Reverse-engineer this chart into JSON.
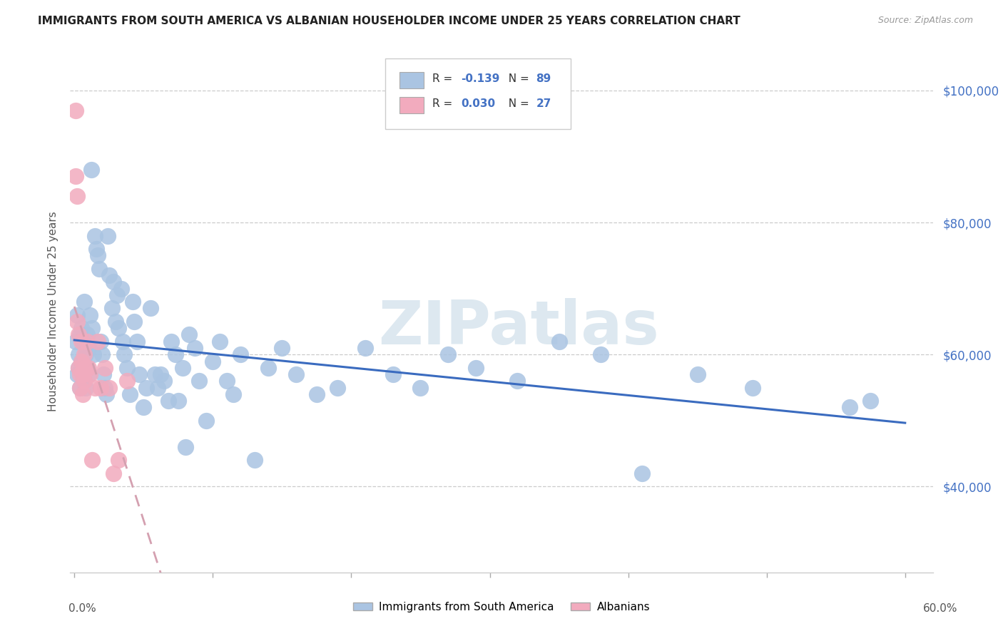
{
  "title": "IMMIGRANTS FROM SOUTH AMERICA VS ALBANIAN HOUSEHOLDER INCOME UNDER 25 YEARS CORRELATION CHART",
  "source": "Source: ZipAtlas.com",
  "ylabel": "Householder Income Under 25 years",
  "yticks": [
    40000,
    60000,
    80000,
    100000
  ],
  "ytick_labels": [
    "$40,000",
    "$60,000",
    "$80,000",
    "$100,000"
  ],
  "xlim": [
    -0.003,
    0.62
  ],
  "ylim": [
    27000,
    106000
  ],
  "blue_R": "-0.139",
  "blue_N": "89",
  "pink_R": "0.030",
  "pink_N": "27",
  "blue_color": "#aac4e2",
  "pink_color": "#f2abbe",
  "blue_line_color": "#3a6bbf",
  "pink_line_color": "#d4a0b0",
  "watermark": "ZIPatlas",
  "legend_label_blue": "Immigrants from South America",
  "legend_label_pink": "Albanians",
  "blue_scatter_x": [
    0.001,
    0.002,
    0.002,
    0.003,
    0.003,
    0.004,
    0.004,
    0.005,
    0.005,
    0.006,
    0.006,
    0.007,
    0.007,
    0.008,
    0.008,
    0.009,
    0.009,
    0.01,
    0.01,
    0.011,
    0.012,
    0.013,
    0.014,
    0.015,
    0.016,
    0.017,
    0.018,
    0.019,
    0.02,
    0.021,
    0.022,
    0.023,
    0.024,
    0.025,
    0.027,
    0.028,
    0.03,
    0.031,
    0.032,
    0.034,
    0.035,
    0.036,
    0.038,
    0.04,
    0.042,
    0.043,
    0.045,
    0.047,
    0.05,
    0.052,
    0.055,
    0.058,
    0.06,
    0.062,
    0.065,
    0.068,
    0.07,
    0.073,
    0.075,
    0.078,
    0.08,
    0.083,
    0.087,
    0.09,
    0.095,
    0.1,
    0.105,
    0.11,
    0.115,
    0.12,
    0.13,
    0.14,
    0.15,
    0.16,
    0.175,
    0.19,
    0.21,
    0.23,
    0.25,
    0.27,
    0.29,
    0.32,
    0.35,
    0.38,
    0.41,
    0.45,
    0.49,
    0.56,
    0.575
  ],
  "blue_scatter_y": [
    62000,
    57000,
    66000,
    60000,
    58000,
    63000,
    55000,
    59000,
    64000,
    57000,
    62000,
    56000,
    68000,
    60000,
    55000,
    63000,
    58000,
    61000,
    57000,
    66000,
    88000,
    64000,
    60000,
    78000,
    76000,
    75000,
    73000,
    62000,
    60000,
    57000,
    55000,
    54000,
    78000,
    72000,
    67000,
    71000,
    65000,
    69000,
    64000,
    70000,
    62000,
    60000,
    58000,
    54000,
    68000,
    65000,
    62000,
    57000,
    52000,
    55000,
    67000,
    57000,
    55000,
    57000,
    56000,
    53000,
    62000,
    60000,
    53000,
    58000,
    46000,
    63000,
    61000,
    56000,
    50000,
    59000,
    62000,
    56000,
    54000,
    60000,
    44000,
    58000,
    61000,
    57000,
    54000,
    55000,
    61000,
    57000,
    55000,
    60000,
    58000,
    56000,
    62000,
    60000,
    42000,
    57000,
    55000,
    52000,
    53000
  ],
  "pink_scatter_x": [
    0.001,
    0.001,
    0.002,
    0.002,
    0.003,
    0.003,
    0.004,
    0.004,
    0.005,
    0.005,
    0.006,
    0.006,
    0.007,
    0.007,
    0.008,
    0.009,
    0.01,
    0.011,
    0.013,
    0.015,
    0.017,
    0.019,
    0.022,
    0.025,
    0.028,
    0.032,
    0.038
  ],
  "pink_scatter_y": [
    97000,
    87000,
    84000,
    65000,
    63000,
    58000,
    57000,
    55000,
    62000,
    59000,
    57000,
    54000,
    60000,
    56000,
    58000,
    62000,
    58000,
    57000,
    44000,
    55000,
    62000,
    55000,
    58000,
    55000,
    42000,
    44000,
    56000
  ]
}
